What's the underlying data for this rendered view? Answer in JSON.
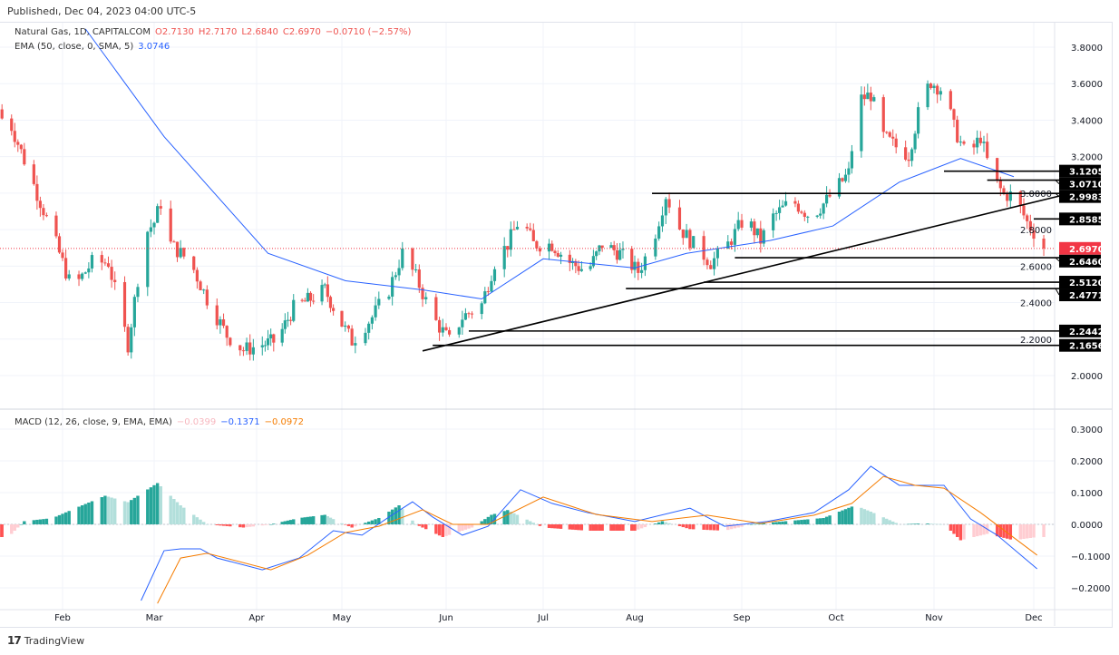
{
  "published": "Publishedı, Dec 04, 2023 04:00 UTC-5",
  "legend": {
    "symbol": "Natural Gas, 1D, CAPITALCOM",
    "o": "O2.7130",
    "h": "H2.7170",
    "l": "L2.6840",
    "c": "C2.6970",
    "chg": "−0.0710 (−2.57%)",
    "ema_label": "EMA (50, close, 0, SMA, 5)",
    "ema_value": "3.0746",
    "macd_label": "MACD (12, 26, close, 9, EMA, EMA)",
    "macd_hist": "−0.0399",
    "macd_line": "−0.1371",
    "macd_signal": "−0.0972"
  },
  "branding": "TradingView",
  "chart_data": [
    {
      "type": "candlestick",
      "pane": "price",
      "ylim": [
        1.9,
        3.9
      ],
      "yticks": [
        "3.8000",
        "3.6000",
        "3.4000",
        "3.2000",
        "3.0000",
        "2.8000",
        "2.6000",
        "2.4000",
        "2.2000",
        "2.0000"
      ],
      "xticks": [
        "Feb",
        "Mar",
        "Apr",
        "May",
        "Jun",
        "Jul",
        "Aug",
        "Sep",
        "Oct",
        "Nov",
        "Dec"
      ],
      "last_price": "2.6970",
      "closes": [
        [
          "2023-01-15",
          3.41
        ],
        [
          "2023-01-29",
          2.77
        ],
        [
          "2023-02-04",
          2.47
        ],
        [
          "2023-02-10",
          2.62
        ],
        [
          "2023-02-15",
          2.62
        ],
        [
          "2023-02-21",
          2.17
        ],
        [
          "2023-02-26",
          2.77
        ],
        [
          "2023-03-01",
          2.84
        ],
        [
          "2023-03-04",
          3.0
        ],
        [
          "2023-03-06",
          2.72
        ],
        [
          "2023-03-12",
          2.62
        ],
        [
          "2023-03-17",
          2.42
        ],
        [
          "2023-03-23",
          2.22
        ],
        [
          "2023-03-28",
          2.14
        ],
        [
          "2023-04-03",
          2.17
        ],
        [
          "2023-04-08",
          2.19
        ],
        [
          "2023-04-14",
          2.37
        ],
        [
          "2023-04-20",
          2.42
        ],
        [
          "2023-04-25",
          2.47
        ],
        [
          "2023-05-04",
          2.19
        ],
        [
          "2023-05-10",
          2.32
        ],
        [
          "2023-05-15",
          2.47
        ],
        [
          "2023-05-19",
          2.67
        ],
        [
          "2023-05-23",
          2.54
        ],
        [
          "2023-05-28",
          2.32
        ],
        [
          "2023-06-02",
          2.19
        ],
        [
          "2023-06-06",
          2.32
        ],
        [
          "2023-06-12",
          2.39
        ],
        [
          "2023-06-16",
          2.62
        ],
        [
          "2023-06-20",
          2.72
        ],
        [
          "2023-06-24",
          2.87
        ],
        [
          "2023-06-28",
          2.72
        ],
        [
          "2023-07-04",
          2.72
        ],
        [
          "2023-07-10",
          2.62
        ],
        [
          "2023-07-16",
          2.57
        ],
        [
          "2023-07-21",
          2.72
        ],
        [
          "2023-07-27",
          2.67
        ],
        [
          "2023-08-02",
          2.57
        ],
        [
          "2023-08-06",
          2.72
        ],
        [
          "2023-08-10",
          2.99
        ],
        [
          "2023-08-14",
          2.81
        ],
        [
          "2023-08-18",
          2.72
        ],
        [
          "2023-08-23",
          2.62
        ],
        [
          "2023-08-27",
          2.69
        ],
        [
          "2023-09-02",
          2.87
        ],
        [
          "2023-09-07",
          2.74
        ],
        [
          "2023-09-11",
          2.87
        ],
        [
          "2023-09-17",
          2.96
        ],
        [
          "2023-09-23",
          2.87
        ],
        [
          "2023-09-28",
          2.96
        ],
        [
          "2023-10-05",
          3.11
        ],
        [
          "2023-10-08",
          3.51
        ],
        [
          "2023-10-12",
          3.54
        ],
        [
          "2023-10-16",
          3.31
        ],
        [
          "2023-10-21",
          3.24
        ],
        [
          "2023-10-24",
          3.21
        ],
        [
          "2023-10-28",
          3.51
        ],
        [
          "2023-10-31",
          3.61
        ],
        [
          "2023-11-04",
          3.56
        ],
        [
          "2023-11-07",
          3.36
        ],
        [
          "2023-11-11",
          3.19
        ],
        [
          "2023-11-15",
          3.31
        ],
        [
          "2023-11-18",
          3.11
        ],
        [
          "2023-11-22",
          2.99
        ],
        [
          "2023-11-25",
          2.99
        ],
        [
          "2023-11-29",
          2.84
        ],
        [
          "2023-12-02",
          2.76
        ],
        [
          "2023-12-04",
          2.697
        ]
      ],
      "ema50": [
        [
          "2023-02-08",
          3.9
        ],
        [
          "2023-03-04",
          3.31
        ],
        [
          "2023-04-05",
          2.67
        ],
        [
          "2023-05-02",
          2.52
        ],
        [
          "2023-05-25",
          2.47
        ],
        [
          "2023-06-12",
          2.42
        ],
        [
          "2023-07-01",
          2.64
        ],
        [
          "2023-08-01",
          2.59
        ],
        [
          "2023-08-16",
          2.67
        ],
        [
          "2023-09-10",
          2.74
        ],
        [
          "2023-09-30",
          2.82
        ],
        [
          "2023-10-21",
          3.06
        ],
        [
          "2023-11-09",
          3.19
        ],
        [
          "2023-11-25",
          3.09
        ]
      ],
      "levels": [
        {
          "value": "3.1205",
          "from": "2023-11-04"
        },
        {
          "value": "3.0710",
          "from": "2023-11-17"
        },
        {
          "value": "2.9983",
          "from": "2023-08-06"
        },
        {
          "value": "2.8585",
          "from": "2023-12-01"
        },
        {
          "value": "2.6460",
          "from": "2023-08-30"
        },
        {
          "value": "2.5120",
          "from": "2023-08-21"
        },
        {
          "value": "2.4771",
          "from": "2023-07-29"
        },
        {
          "value": "2.2442",
          "from": "2023-06-08"
        },
        {
          "value": "2.1656",
          "from": "2023-05-28"
        }
      ],
      "trendline": [
        [
          "2023-05-25",
          2.135
        ],
        [
          "2023-12-10",
          2.99
        ]
      ],
      "colors": {
        "up": "#26a69a",
        "down": "#ef5350",
        "ema": "#2962ff",
        "last": "#f23645"
      }
    },
    {
      "type": "macd",
      "pane": "macd",
      "ylim": [
        -0.26,
        0.34
      ],
      "yticks": [
        "0.3000",
        "0.2000",
        "0.1000",
        "0.0000",
        "−0.1000",
        "−0.2000"
      ],
      "macd": [
        [
          "2023-02-25",
          -0.24
        ],
        [
          "2023-03-04",
          -0.083
        ],
        [
          "2023-03-09",
          -0.077
        ],
        [
          "2023-03-15",
          -0.077
        ],
        [
          "2023-03-20",
          -0.106
        ],
        [
          "2023-04-03",
          -0.143
        ],
        [
          "2023-04-16",
          -0.106
        ],
        [
          "2023-04-28",
          -0.02
        ],
        [
          "2023-05-07",
          -0.034
        ],
        [
          "2023-05-15",
          0.023
        ],
        [
          "2023-05-22",
          0.071
        ],
        [
          "2023-05-28",
          0.023
        ],
        [
          "2023-06-06",
          -0.034
        ],
        [
          "2023-06-14",
          -0.006
        ],
        [
          "2023-06-24",
          0.109
        ],
        [
          "2023-07-04",
          0.066
        ],
        [
          "2023-07-16",
          0.037
        ],
        [
          "2023-08-01",
          0.009
        ],
        [
          "2023-08-17",
          0.051
        ],
        [
          "2023-08-27",
          -0.006
        ],
        [
          "2023-09-09",
          0.009
        ],
        [
          "2023-09-24",
          0.037
        ],
        [
          "2023-10-05",
          0.109
        ],
        [
          "2023-10-12",
          0.183
        ],
        [
          "2023-10-21",
          0.123
        ],
        [
          "2023-11-04",
          0.123
        ],
        [
          "2023-11-12",
          0.017
        ],
        [
          "2023-11-20",
          -0.034
        ],
        [
          "2023-12-02",
          -0.14
        ]
      ],
      "signal": [
        [
          "2023-03-02",
          -0.249
        ],
        [
          "2023-03-09",
          -0.106
        ],
        [
          "2023-03-17",
          -0.091
        ],
        [
          "2023-04-06",
          -0.143
        ],
        [
          "2023-04-19",
          -0.097
        ],
        [
          "2023-05-02",
          -0.026
        ],
        [
          "2023-05-12",
          -0.006
        ],
        [
          "2023-05-25",
          0.046
        ],
        [
          "2023-06-03",
          0.0
        ],
        [
          "2023-06-14",
          0.0
        ],
        [
          "2023-07-01",
          0.086
        ],
        [
          "2023-07-19",
          0.031
        ],
        [
          "2023-08-06",
          0.009
        ],
        [
          "2023-08-22",
          0.029
        ],
        [
          "2023-09-07",
          0.003
        ],
        [
          "2023-09-24",
          0.029
        ],
        [
          "2023-10-06",
          0.066
        ],
        [
          "2023-10-16",
          0.151
        ],
        [
          "2023-10-26",
          0.123
        ],
        [
          "2023-11-04",
          0.114
        ],
        [
          "2023-11-15",
          0.037
        ],
        [
          "2023-12-02",
          -0.097
        ]
      ],
      "histogram": [
        [
          "2023-01-15",
          -0.04
        ],
        [
          "2023-01-20",
          0.01
        ],
        [
          "2023-01-29",
          0.02
        ],
        [
          "2023-02-07",
          0.06
        ],
        [
          "2023-02-14",
          0.09
        ],
        [
          "2023-02-21",
          0.07
        ],
        [
          "2023-03-02",
          0.13
        ],
        [
          "2023-03-09",
          0.06
        ],
        [
          "2023-03-17",
          0.0
        ],
        [
          "2023-03-28",
          -0.01
        ],
        [
          "2023-04-06",
          0.0
        ],
        [
          "2023-04-16",
          0.02
        ],
        [
          "2023-04-25",
          0.03
        ],
        [
          "2023-05-04",
          -0.01
        ],
        [
          "2023-05-12",
          0.02
        ],
        [
          "2023-05-18",
          0.06
        ],
        [
          "2023-05-23",
          0.0
        ],
        [
          "2023-05-31",
          -0.04
        ],
        [
          "2023-06-09",
          -0.01
        ],
        [
          "2023-06-15",
          0.03
        ],
        [
          "2023-06-20",
          0.045
        ],
        [
          "2023-06-25",
          0.02
        ],
        [
          "2023-07-01",
          -0.01
        ],
        [
          "2023-07-16",
          -0.02
        ],
        [
          "2023-08-01",
          -0.02
        ],
        [
          "2023-08-09",
          0.01
        ],
        [
          "2023-08-17",
          -0.015
        ],
        [
          "2023-08-27",
          -0.02
        ],
        [
          "2023-09-04",
          0.0
        ],
        [
          "2023-09-15",
          0.01
        ],
        [
          "2023-09-27",
          0.02
        ],
        [
          "2023-10-07",
          0.06
        ],
        [
          "2023-10-12",
          0.04
        ],
        [
          "2023-10-21",
          0.0
        ],
        [
          "2023-10-29",
          0.003
        ],
        [
          "2023-11-04",
          0.0
        ],
        [
          "2023-11-09",
          -0.05
        ],
        [
          "2023-11-17",
          -0.03
        ],
        [
          "2023-11-25",
          -0.05
        ],
        [
          "2023-12-02",
          -0.04
        ]
      ],
      "colors": {
        "macd": "#2962ff",
        "signal": "#f57c00",
        "pos_up": "#26a69a",
        "pos_down": "#b2dfdb",
        "neg_down": "#ff5252",
        "neg_up": "#ffcdd2"
      }
    }
  ]
}
